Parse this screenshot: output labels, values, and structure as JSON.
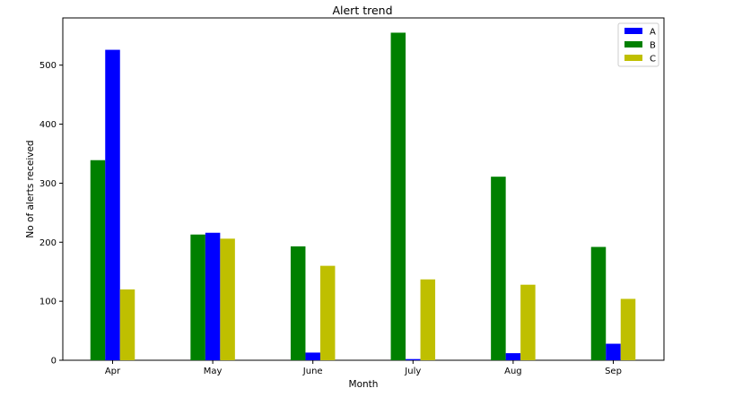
{
  "chart_data": {
    "type": "bar",
    "title": "Alert trend",
    "xlabel": "Month",
    "ylabel": "No of alerts received",
    "categories": [
      "Apr",
      "May",
      "June",
      "July",
      "Aug",
      "Sep"
    ],
    "draw_order": [
      "B",
      "A",
      "C"
    ],
    "series": [
      {
        "name": "A",
        "color": "#0000ff",
        "values": [
          526,
          216,
          13,
          2,
          12,
          28
        ]
      },
      {
        "name": "B",
        "color": "#008000",
        "values": [
          339,
          213,
          193,
          555,
          311,
          192
        ]
      },
      {
        "name": "C",
        "color": "#bfbf00",
        "values": [
          120,
          206,
          160,
          137,
          128,
          104
        ]
      }
    ],
    "ylim": [
      0,
      580
    ],
    "yticks": [
      0,
      100,
      200,
      300,
      400,
      500
    ],
    "grid": false,
    "legend_position": "top-right"
  }
}
